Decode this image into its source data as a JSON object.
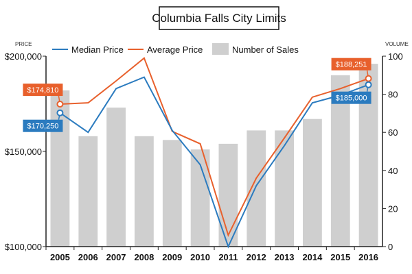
{
  "colors": {
    "median": "#2b7bbf",
    "average": "#e8602c",
    "bars": "#cfcfcf",
    "axis": "#222222"
  },
  "chart_data": {
    "type": "bar+line",
    "title": "Columbia Falls City Limits",
    "left_axis_label": "PRICE",
    "right_axis_label": "VOLUME",
    "categories": [
      "2005",
      "2006",
      "2007",
      "2008",
      "2009",
      "2010",
      "2011",
      "2012",
      "2013",
      "2014",
      "2015",
      "2016"
    ],
    "left_axis": {
      "min": 100000,
      "max": 200000,
      "ticks": [
        100000,
        150000,
        200000
      ],
      "tick_labels": [
        "$100,000",
        "$150,000",
        "$200,000"
      ]
    },
    "right_axis": {
      "min": 0,
      "max": 100,
      "ticks": [
        0,
        20,
        40,
        60,
        80,
        100
      ],
      "tick_labels": [
        "0",
        "20",
        "40",
        "60",
        "80",
        "100"
      ]
    },
    "legend": [
      {
        "key": "median",
        "label": "Median Price",
        "kind": "line"
      },
      {
        "key": "average",
        "label": "Average Price",
        "kind": "line"
      },
      {
        "key": "sales",
        "label": "Number of Sales",
        "kind": "bar"
      }
    ],
    "series": [
      {
        "key": "sales",
        "name": "Number of Sales",
        "axis": "right",
        "values": [
          82,
          58,
          73,
          58,
          56,
          51,
          54,
          61,
          61,
          67,
          90,
          96
        ]
      },
      {
        "key": "median",
        "name": "Median Price",
        "axis": "left",
        "values": [
          170250,
          160000,
          183000,
          189000,
          161000,
          143000,
          100000,
          132000,
          153000,
          175500,
          179500,
          185000
        ]
      },
      {
        "key": "average",
        "name": "Average Price",
        "axis": "left",
        "values": [
          174810,
          175500,
          187000,
          199000,
          160500,
          154000,
          106000,
          136000,
          157000,
          178500,
          183000,
          188251
        ]
      }
    ],
    "callouts": [
      {
        "series": "average",
        "index": 0,
        "text": "$174,810",
        "placement": "above-left"
      },
      {
        "series": "median",
        "index": 0,
        "text": "$170,250",
        "placement": "below-left"
      },
      {
        "series": "average",
        "index": 11,
        "text": "$188,251",
        "placement": "above-left"
      },
      {
        "series": "median",
        "index": 11,
        "text": "$185,000",
        "placement": "below-left"
      }
    ]
  }
}
